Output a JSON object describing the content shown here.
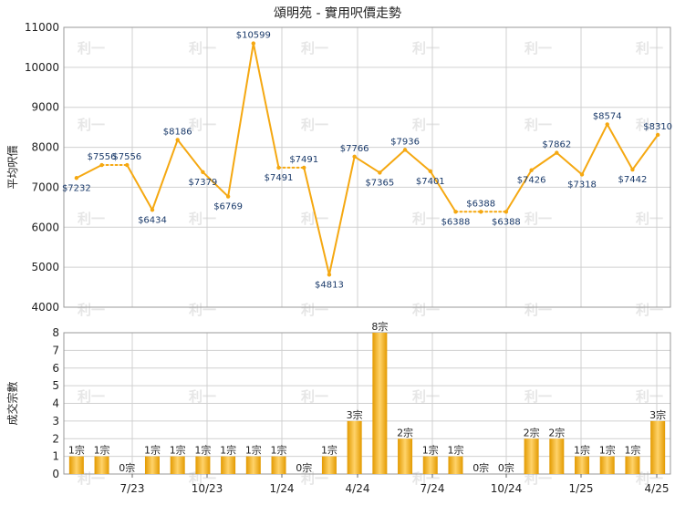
{
  "title": "頌明苑 - 實用呎價走勢",
  "watermark": "利一",
  "colors": {
    "line": "#f5a811",
    "bar_dark": "#e39a00",
    "bar_light": "#ffd36a",
    "grid": "#d0d0d0",
    "axis": "#222222",
    "label": "#1a3a6a"
  },
  "chart_data": [
    {
      "type": "line",
      "ylabel": "平均呎價",
      "ylim": [
        4000,
        11000
      ],
      "yticks": [
        4000,
        5000,
        6000,
        7000,
        8000,
        9000,
        10000,
        11000
      ],
      "grid": true,
      "values": [
        7232,
        7556,
        7556,
        6434,
        8186,
        7379,
        6769,
        10599,
        7491,
        7491,
        4813,
        7766,
        7365,
        7936,
        7401,
        6388,
        6388,
        6388,
        7426,
        7862,
        7318,
        8574,
        7442,
        8310
      ],
      "labels": [
        "$7232",
        "$7556",
        "$7556",
        "$6434",
        "$8186",
        "$7379",
        "$6769",
        "$10599",
        "$7491",
        "$7491",
        "$4813",
        "$7766",
        "$7365",
        "$7936",
        "$7401",
        "$6388",
        "$6388",
        "$6388",
        "$7426",
        "$7862",
        "$7318",
        "$8574",
        "$7442",
        "$8310"
      ],
      "dashed_segments": [
        [
          1,
          2
        ],
        [
          8,
          9
        ],
        [
          15,
          16
        ],
        [
          16,
          17
        ]
      ]
    },
    {
      "type": "bar",
      "ylabel": "成交宗數",
      "ylim": [
        0,
        8
      ],
      "yticks": [
        0,
        1,
        2,
        3,
        4,
        5,
        6,
        7,
        8
      ],
      "grid": true,
      "values": [
        1,
        1,
        0,
        1,
        1,
        1,
        1,
        1,
        1,
        0,
        1,
        3,
        8,
        2,
        1,
        1,
        0,
        0,
        2,
        2,
        1,
        1,
        1,
        3
      ],
      "labels": [
        "1宗",
        "1宗",
        "0宗",
        "1宗",
        "1宗",
        "1宗",
        "1宗",
        "1宗",
        "1宗",
        "0宗",
        "1宗",
        "3宗",
        "8宗",
        "2宗",
        "1宗",
        "1宗",
        "0宗",
        "0宗",
        "2宗",
        "2宗",
        "1宗",
        "1宗",
        "1宗",
        "3宗"
      ],
      "x_ticks": [
        "7/23",
        "10/23",
        "1/24",
        "4/24",
        "7/24",
        "10/24",
        "1/25",
        "4/25"
      ]
    }
  ]
}
